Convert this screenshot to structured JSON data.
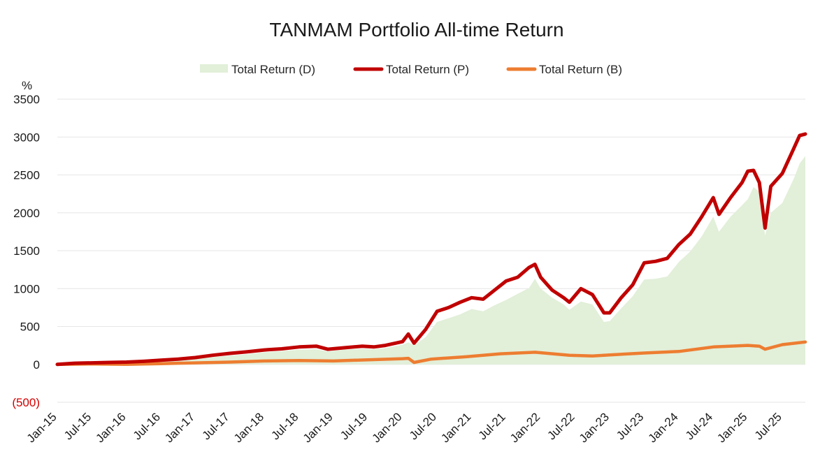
{
  "chart_data": {
    "type": "line",
    "title": "TANMAM Portfolio All-time Return",
    "ylabel": "%",
    "ylim": [
      -500,
      3500
    ],
    "y_ticks": [
      -500,
      0,
      500,
      1000,
      1500,
      2000,
      2500,
      3000,
      3500
    ],
    "y_tick_labels": [
      "(500)",
      "0",
      "500",
      "1000",
      "1500",
      "2000",
      "2500",
      "3000",
      "3500"
    ],
    "x_tick_labels": [
      "Jan-15",
      "Jul-15",
      "Jan-16",
      "Jul-16",
      "Jan-17",
      "Jul-17",
      "Jan-18",
      "Jul-18",
      "Jan-19",
      "Jul-19",
      "Jan-20",
      "Jul-20",
      "Jan-21",
      "Jul-21",
      "Jan-22",
      "Jul-22",
      "Jan-23",
      "Jul-23",
      "Jan-24",
      "Jul-24",
      "Jan-25",
      "Jul-25"
    ],
    "xlim": [
      "2015-01",
      "2025-11"
    ],
    "grid": "horizontal",
    "legend_position": "top-center",
    "colors": {
      "D": "#e2efd9",
      "P": "#c00000",
      "B": "#ed7d31",
      "negative_tick": "#d40000"
    },
    "series": [
      {
        "name": "Total Return (D)",
        "style": "area",
        "x": [
          "2015-01",
          "2015-04",
          "2015-07",
          "2015-10",
          "2016-01",
          "2016-04",
          "2016-07",
          "2016-10",
          "2017-01",
          "2017-04",
          "2017-07",
          "2017-10",
          "2018-01",
          "2018-04",
          "2018-07",
          "2018-10",
          "2018-12",
          "2019-03",
          "2019-06",
          "2019-08",
          "2019-10",
          "2020-01",
          "2020-02",
          "2020-03",
          "2020-05",
          "2020-07",
          "2020-09",
          "2020-11",
          "2021-01",
          "2021-03",
          "2021-05",
          "2021-07",
          "2021-09",
          "2021-11",
          "2021-12",
          "2022-01",
          "2022-03",
          "2022-05",
          "2022-06",
          "2022-08",
          "2022-10",
          "2022-12",
          "2023-01",
          "2023-03",
          "2023-05",
          "2023-07",
          "2023-09",
          "2023-11",
          "2024-01",
          "2024-03",
          "2024-05",
          "2024-07",
          "2024-08",
          "2024-10",
          "2024-12",
          "2025-01",
          "2025-02",
          "2025-03",
          "2025-04",
          "2025-05",
          "2025-07",
          "2025-09",
          "2025-10",
          "2025-11"
        ],
        "values": [
          0,
          10,
          15,
          18,
          20,
          25,
          40,
          55,
          70,
          95,
          115,
          135,
          160,
          175,
          195,
          200,
          170,
          195,
          205,
          200,
          215,
          260,
          290,
          250,
          360,
          560,
          610,
          660,
          730,
          700,
          780,
          850,
          930,
          1010,
          1130,
          1000,
          880,
          790,
          720,
          830,
          790,
          560,
          570,
          740,
          900,
          1120,
          1130,
          1160,
          1350,
          1490,
          1690,
          1950,
          1750,
          1950,
          2100,
          2180,
          2340,
          2280,
          1700,
          2000,
          2130,
          2450,
          2650,
          2750
        ]
      },
      {
        "name": "Total Return (P)",
        "style": "line",
        "x": [
          "2015-01",
          "2015-04",
          "2015-07",
          "2015-10",
          "2016-01",
          "2016-04",
          "2016-07",
          "2016-10",
          "2017-01",
          "2017-04",
          "2017-07",
          "2017-10",
          "2018-01",
          "2018-04",
          "2018-07",
          "2018-10",
          "2018-12",
          "2019-03",
          "2019-06",
          "2019-08",
          "2019-10",
          "2020-01",
          "2020-02",
          "2020-03",
          "2020-05",
          "2020-07",
          "2020-09",
          "2020-11",
          "2021-01",
          "2021-03",
          "2021-05",
          "2021-07",
          "2021-09",
          "2021-11",
          "2021-12",
          "2022-01",
          "2022-03",
          "2022-05",
          "2022-06",
          "2022-08",
          "2022-10",
          "2022-12",
          "2023-01",
          "2023-03",
          "2023-05",
          "2023-07",
          "2023-09",
          "2023-11",
          "2024-01",
          "2024-03",
          "2024-05",
          "2024-07",
          "2024-08",
          "2024-10",
          "2024-12",
          "2025-01",
          "2025-02",
          "2025-03",
          "2025-04",
          "2025-05",
          "2025-07",
          "2025-09",
          "2025-10",
          "2025-11"
        ],
        "values": [
          0,
          15,
          20,
          25,
          30,
          40,
          55,
          70,
          90,
          120,
          145,
          165,
          190,
          205,
          230,
          240,
          200,
          220,
          240,
          230,
          250,
          300,
          400,
          280,
          460,
          700,
          750,
          820,
          880,
          860,
          980,
          1100,
          1150,
          1280,
          1320,
          1150,
          980,
          880,
          820,
          1000,
          920,
          680,
          680,
          880,
          1050,
          1340,
          1360,
          1400,
          1580,
          1720,
          1950,
          2200,
          1980,
          2200,
          2400,
          2550,
          2560,
          2400,
          1800,
          2350,
          2520,
          2850,
          3020,
          3040
        ]
      },
      {
        "name": "Total Return (B)",
        "style": "line",
        "x": [
          "2015-01",
          "2015-07",
          "2016-01",
          "2016-07",
          "2017-01",
          "2017-07",
          "2018-01",
          "2018-07",
          "2019-01",
          "2019-07",
          "2020-01",
          "2020-02",
          "2020-03",
          "2020-06",
          "2020-12",
          "2021-06",
          "2021-12",
          "2022-06",
          "2022-10",
          "2023-01",
          "2023-07",
          "2024-01",
          "2024-07",
          "2025-01",
          "2025-03",
          "2025-04",
          "2025-07",
          "2025-11"
        ],
        "values": [
          0,
          5,
          0,
          10,
          20,
          30,
          45,
          50,
          45,
          60,
          75,
          80,
          25,
          70,
          100,
          140,
          160,
          120,
          110,
          125,
          150,
          170,
          230,
          250,
          240,
          200,
          260,
          295
        ]
      }
    ]
  }
}
